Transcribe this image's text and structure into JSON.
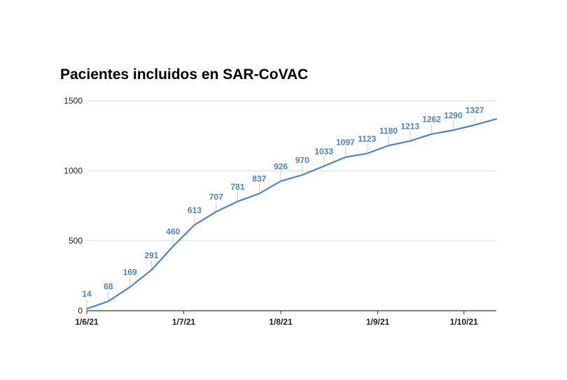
{
  "chart_data": {
    "type": "line",
    "title": "Pacientes incluidos en SAR-CoVAC",
    "xlabel": "",
    "ylabel": "",
    "ylim": [
      0,
      1500
    ],
    "yticks": [
      "0",
      "500",
      "1000",
      "1500"
    ],
    "xticks": [
      {
        "label": "1/6/21",
        "index": 0
      },
      {
        "label": "1/7/21",
        "index": 4.5
      },
      {
        "label": "1/8/21",
        "index": 9
      },
      {
        "label": "1/9/21",
        "index": 13.5
      },
      {
        "label": "1/10/21",
        "index": 17.5
      }
    ],
    "grid": true,
    "legend": "none",
    "line_color": "#4a86c8",
    "series": [
      {
        "values": [
          14,
          68,
          169,
          291,
          460,
          613,
          707,
          781,
          837,
          926,
          970,
          1033,
          1097,
          1123,
          1180,
          1213,
          1262,
          1290,
          1327,
          1370
        ],
        "labels": [
          "14",
          "68",
          "169",
          "291",
          "460",
          "613",
          "707",
          "781",
          "837",
          "926",
          "970",
          "1033",
          "1097",
          "1123",
          "1180",
          "1213",
          "1262",
          "1290",
          "1327",
          ""
        ]
      }
    ]
  }
}
